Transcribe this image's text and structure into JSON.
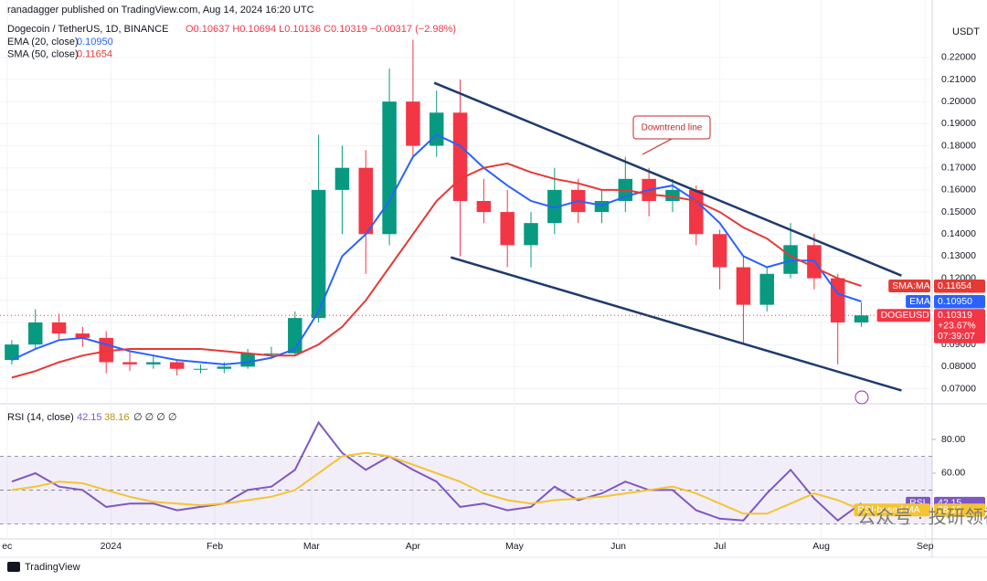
{
  "header": {
    "publisher": "ranadagger published on TradingView.com, Aug 14, 2024 16:20 UTC",
    "symbol": "Dogecoin / TetherUS, 1D, BINANCE",
    "ohlc": "O0.10637 H0.10694 L0.10136 C0.10319 −0.00317 (−2.98%)",
    "currency": "USDT",
    "watermark": "公众号 · 投研领袖特训营",
    "footer": "TradingView"
  },
  "chart_data": [
    {
      "type": "candlestick",
      "annotation": "Downtrend line",
      "up_color": "#089981",
      "down_color": "#f23645",
      "x": [
        0,
        1,
        2,
        3,
        4,
        5,
        6,
        7,
        8,
        9,
        10,
        11,
        12,
        13,
        14,
        15,
        16,
        17,
        18,
        19,
        20,
        21,
        22,
        23,
        24,
        25,
        26,
        27,
        28,
        29,
        30,
        31,
        32,
        33,
        34,
        35,
        36
      ],
      "open": [
        0.083,
        0.09,
        0.1,
        0.095,
        0.093,
        0.082,
        0.081,
        0.082,
        0.079,
        0.079,
        0.08,
        0.086,
        0.086,
        0.102,
        0.16,
        0.17,
        0.14,
        0.2,
        0.18,
        0.195,
        0.155,
        0.15,
        0.135,
        0.145,
        0.16,
        0.15,
        0.155,
        0.165,
        0.155,
        0.16,
        0.14,
        0.125,
        0.108,
        0.122,
        0.135,
        0.12,
        0.1
      ],
      "high": [
        0.092,
        0.106,
        0.104,
        0.098,
        0.096,
        0.087,
        0.085,
        0.083,
        0.081,
        0.082,
        0.088,
        0.089,
        0.105,
        0.185,
        0.18,
        0.178,
        0.215,
        0.228,
        0.205,
        0.21,
        0.165,
        0.16,
        0.15,
        0.17,
        0.165,
        0.16,
        0.175,
        0.17,
        0.165,
        0.162,
        0.142,
        0.13,
        0.125,
        0.145,
        0.14,
        0.122,
        0.109
      ],
      "low": [
        0.081,
        0.088,
        0.092,
        0.089,
        0.077,
        0.078,
        0.079,
        0.076,
        0.077,
        0.077,
        0.079,
        0.084,
        0.085,
        0.1,
        0.14,
        0.122,
        0.135,
        0.175,
        0.175,
        0.13,
        0.145,
        0.125,
        0.125,
        0.14,
        0.145,
        0.145,
        0.15,
        0.148,
        0.15,
        0.135,
        0.115,
        0.09,
        0.105,
        0.12,
        0.115,
        0.081,
        0.098
      ],
      "close": [
        0.09,
        0.1,
        0.095,
        0.093,
        0.082,
        0.081,
        0.082,
        0.079,
        0.079,
        0.08,
        0.086,
        0.086,
        0.102,
        0.16,
        0.17,
        0.14,
        0.2,
        0.18,
        0.195,
        0.155,
        0.15,
        0.135,
        0.145,
        0.16,
        0.15,
        0.155,
        0.165,
        0.155,
        0.16,
        0.14,
        0.125,
        0.108,
        0.122,
        0.135,
        0.12,
        0.1,
        0.10319
      ],
      "badge": [
        "DOGEUSDT",
        "0.10319",
        "+23.67%",
        "07:39:07"
      ],
      "series": [
        {
          "name": "EMA (20, close)",
          "last_label": "0.10950",
          "badge": [
            "EMA",
            "0.10950"
          ],
          "color": "#2962ff",
          "values": [
            0.083,
            0.088,
            0.092,
            0.093,
            0.09,
            0.087,
            0.085,
            0.083,
            0.082,
            0.081,
            0.082,
            0.084,
            0.088,
            0.105,
            0.13,
            0.14,
            0.155,
            0.175,
            0.185,
            0.18,
            0.17,
            0.162,
            0.155,
            0.152,
            0.155,
            0.153,
            0.157,
            0.16,
            0.162,
            0.155,
            0.145,
            0.13,
            0.125,
            0.128,
            0.128,
            0.113,
            0.1095
          ]
        },
        {
          "name": "SMA (50, close)",
          "last_label": "0.11654",
          "badge": [
            "SMA:MA",
            "0.11654"
          ],
          "color": "#e53935",
          "values": [
            0.075,
            0.078,
            0.082,
            0.085,
            0.087,
            0.088,
            0.088,
            0.088,
            0.088,
            0.087,
            0.086,
            0.085,
            0.085,
            0.09,
            0.098,
            0.11,
            0.125,
            0.14,
            0.155,
            0.165,
            0.17,
            0.172,
            0.168,
            0.165,
            0.163,
            0.16,
            0.16,
            0.158,
            0.157,
            0.155,
            0.15,
            0.143,
            0.138,
            0.13,
            0.125,
            0.12,
            0.11654
          ]
        }
      ],
      "trendlines": [
        {
          "x": [
            17.9,
            37.7
          ],
          "y": [
            0.2085,
            0.1212
          ]
        },
        {
          "x": [
            18.6,
            37.7
          ],
          "y": [
            0.1295,
            0.0692
          ]
        }
      ],
      "xlim": [
        -0.5,
        39
      ],
      "xticks": [
        {
          "value": -0.2,
          "label": "ec"
        },
        {
          "value": 4.2,
          "label": "2024"
        },
        {
          "value": 8.6,
          "label": "Feb"
        },
        {
          "value": 12.7,
          "label": "Mar"
        },
        {
          "value": 17.0,
          "label": "Apr"
        },
        {
          "value": 21.3,
          "label": "May"
        },
        {
          "value": 25.7,
          "label": "Jun"
        },
        {
          "value": 30.0,
          "label": "Jul"
        },
        {
          "value": 34.3,
          "label": "Aug"
        },
        {
          "value": 38.7,
          "label": "Sep"
        }
      ],
      "ylim": [
        0.064,
        0.246
      ],
      "yticks": [
        {
          "value": 0.07,
          "label": "0.07000"
        },
        {
          "value": 0.08,
          "label": "0.08000"
        },
        {
          "value": 0.09,
          "label": "0.09000"
        },
        {
          "value": 0.1,
          "label": "0.10000"
        },
        {
          "value": 0.11,
          "label": "0.11000"
        },
        {
          "value": 0.12,
          "label": "0.12000"
        },
        {
          "value": 0.13,
          "label": "0.13000"
        },
        {
          "value": 0.14,
          "label": "0.14000"
        },
        {
          "value": 0.15,
          "label": "0.15000"
        },
        {
          "value": 0.16,
          "label": "0.16000"
        },
        {
          "value": 0.17,
          "label": "0.17000"
        },
        {
          "value": 0.18,
          "label": "0.18000"
        },
        {
          "value": 0.19,
          "label": "0.19000"
        },
        {
          "value": 0.2,
          "label": "0.20000"
        },
        {
          "value": 0.21,
          "label": "0.21000"
        },
        {
          "value": 0.22,
          "label": "0.22000"
        }
      ],
      "grid": true
    },
    {
      "type": "line",
      "title": "RSI (14, close)",
      "extra": "∅ ∅ ∅ ∅",
      "x": [
        0,
        1,
        2,
        3,
        4,
        5,
        6,
        7,
        8,
        9,
        10,
        11,
        12,
        13,
        14,
        15,
        16,
        17,
        18,
        19,
        20,
        21,
        22,
        23,
        24,
        25,
        26,
        27,
        28,
        29,
        30,
        31,
        32,
        33,
        34,
        35,
        36
      ],
      "series": [
        {
          "name": "RSI",
          "last_label": "42.15",
          "color": "#7e57c2",
          "values": [
            55,
            60,
            52,
            50,
            40,
            42,
            42,
            38,
            40,
            42,
            50,
            52,
            62,
            90,
            72,
            62,
            70,
            62,
            55,
            40,
            42,
            38,
            40,
            52,
            44,
            48,
            55,
            50,
            50,
            38,
            33,
            32,
            48,
            62,
            45,
            32,
            42.15
          ]
        },
        {
          "name": "RSI-based MA",
          "last_label": "38.16",
          "color": "#f5c431",
          "values": [
            50,
            52,
            55,
            54,
            50,
            46,
            43,
            42,
            41,
            42,
            44,
            46,
            50,
            60,
            70,
            72,
            70,
            65,
            60,
            55,
            48,
            44,
            42,
            44,
            45,
            46,
            48,
            50,
            52,
            48,
            42,
            36,
            36,
            42,
            48,
            44,
            38.16
          ]
        }
      ],
      "band": [
        30,
        70
      ],
      "levels": [
        70,
        50,
        30
      ],
      "xlim": [
        -0.5,
        39
      ],
      "ylim": [
        21,
        99.5
      ],
      "yticks": [
        {
          "value": 60,
          "label": "60.00"
        },
        {
          "value": 80,
          "label": "80.00"
        }
      ]
    }
  ]
}
